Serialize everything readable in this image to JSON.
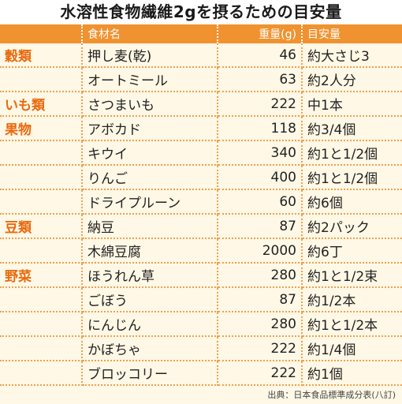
{
  "title": "水溶性食物繊維2gを摂るための目安量",
  "headers": {
    "category": "",
    "food": "食材名",
    "weight": "重量(g)",
    "amount": "目安量"
  },
  "rows": [
    {
      "category": "穀類",
      "food": "押し麦(乾)",
      "weight": "46",
      "amount": "約大さじ3"
    },
    {
      "category": "",
      "food": "オートミール",
      "weight": "63",
      "amount": "約2人分"
    },
    {
      "category": "いも類",
      "food": "さつまいも",
      "weight": "222",
      "amount": "中1本"
    },
    {
      "category": "果物",
      "food": "アボカド",
      "weight": "118",
      "amount": "約3/4個"
    },
    {
      "category": "",
      "food": "キウイ",
      "weight": "340",
      "amount": "約1と1/2個"
    },
    {
      "category": "",
      "food": "りんご",
      "weight": "400",
      "amount": "約1と1/2個"
    },
    {
      "category": "",
      "food": "ドライプルーン",
      "weight": "60",
      "amount": "約6個"
    },
    {
      "category": "豆類",
      "food": "納豆",
      "weight": "87",
      "amount": "約2パック"
    },
    {
      "category": "",
      "food": "木綿豆腐",
      "weight": "2000",
      "amount": "約6丁"
    },
    {
      "category": "野菜",
      "food": "ほうれん草",
      "weight": "280",
      "amount": "約1と1/2束"
    },
    {
      "category": "",
      "food": "ごぼう",
      "weight": "87",
      "amount": "約1/2本"
    },
    {
      "category": "",
      "food": "にんじん",
      "weight": "280",
      "amount": "約1と1/2本"
    },
    {
      "category": "",
      "food": "かぼちゃ",
      "weight": "222",
      "amount": "約1/4個"
    },
    {
      "category": "",
      "food": "ブロッコリー",
      "weight": "222",
      "amount": "約1個"
    }
  ],
  "source": "出典：日本食品標準成分表(八訂)",
  "colors": {
    "header_bg": "#f0922f",
    "category_text": "#ea6a0e",
    "background": "#fff8e6",
    "divider": "#f0a050"
  }
}
